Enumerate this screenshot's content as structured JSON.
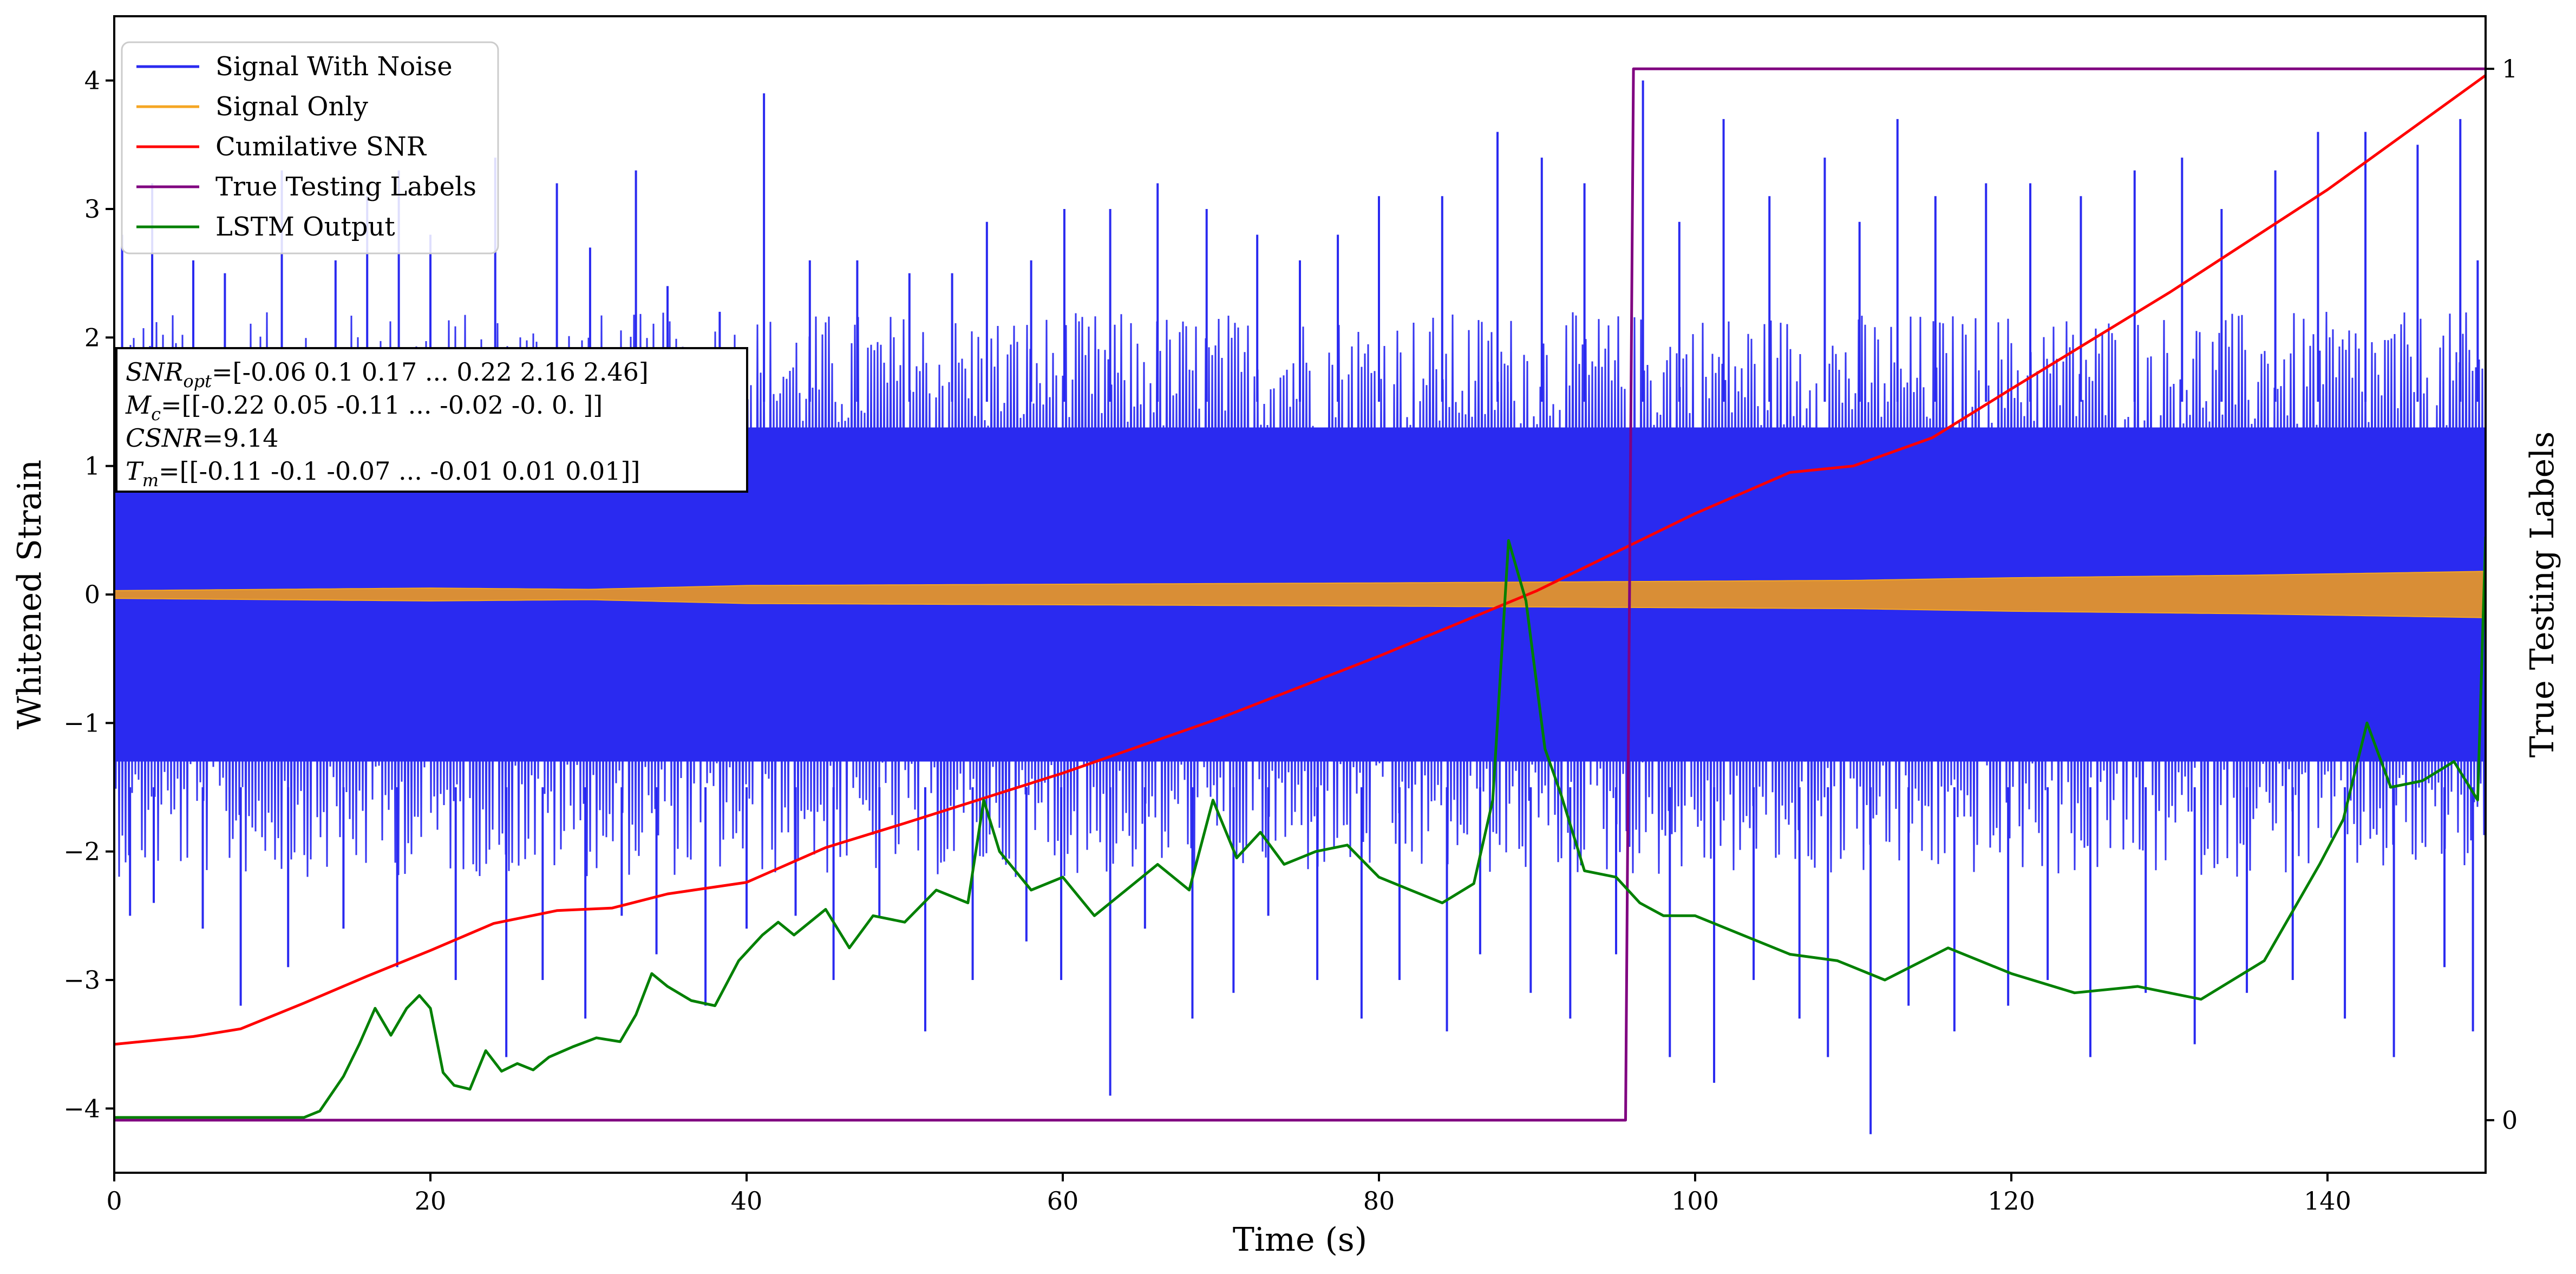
{
  "chart_data": {
    "type": "line",
    "x_axis": {
      "label": "Time (s)",
      "lim": [
        0,
        150
      ],
      "ticks": [
        0,
        20,
        40,
        60,
        80,
        100,
        120,
        140
      ],
      "tick_labels": [
        "0",
        "20",
        "40",
        "60",
        "80",
        "100",
        "120",
        "140"
      ]
    },
    "y_axis_left": {
      "label": "Whitened Strain",
      "lim": [
        -4.5,
        4.5
      ],
      "ticks": [
        -4,
        -3,
        -2,
        -1,
        0,
        1,
        2,
        3,
        4
      ],
      "tick_labels": [
        "−4",
        "−3",
        "−2",
        "−1",
        "0",
        "1",
        "2",
        "3",
        "4"
      ]
    },
    "y_axis_right": {
      "label": "True Testing Labels",
      "lim": [
        -0.05,
        1.05
      ],
      "ticks": [
        0,
        1
      ],
      "tick_labels": [
        "0",
        "1"
      ]
    },
    "legend": {
      "position": "top-left",
      "entries": [
        {
          "name": "Signal With Noise",
          "color": "#2a2af0"
        },
        {
          "name": "Signal Only",
          "color": "#f5a623"
        },
        {
          "name": "Cumilative SNR",
          "color": "#ff0000"
        },
        {
          "name": "True Testing Labels",
          "color": "#800080"
        },
        {
          "name": "LSTM Output",
          "color": "#008000"
        }
      ]
    },
    "annotation": {
      "position": "upper-left",
      "lines": [
        {
          "sym": "SNR",
          "sub": "opt",
          "rest": "=[-0.06  0.1   0.17 ...  0.22  2.16  2.46]"
        },
        {
          "sym": "M",
          "sub": "c",
          "rest": "=[[-0.22  0.05 -0.11 ... -0.02 -0.    0.  ]]"
        },
        {
          "sym": "CSNR",
          "sub": "",
          "rest": "=9.14"
        },
        {
          "sym": "T",
          "sub": "m",
          "rest": "=[[-0.11 -0.1  -0.07 ... -0.01  0.01  0.01]]"
        }
      ]
    },
    "series": [
      {
        "name": "Signal With Noise",
        "color": "#2a2af0",
        "axis": "left",
        "note": "dense noisy band approximately between -2.5 and 2.5 with spikes",
        "band_low": -2.2,
        "band_high": 2.2,
        "positive_spikes": [
          [
            0.5,
            2.8
          ],
          [
            2.4,
            3.2
          ],
          [
            5,
            2.6
          ],
          [
            7,
            2.5
          ],
          [
            10.6,
            3.3
          ],
          [
            14,
            2.6
          ],
          [
            16,
            3.1
          ],
          [
            18,
            3.3
          ],
          [
            20,
            2.8
          ],
          [
            24.1,
            3.4
          ],
          [
            28,
            3.2
          ],
          [
            30.1,
            2.7
          ],
          [
            33,
            3.3
          ],
          [
            35,
            2.4
          ],
          [
            38.3,
            2.2
          ],
          [
            41.1,
            3.9
          ],
          [
            44,
            2.6
          ],
          [
            47,
            2.6
          ],
          [
            50.3,
            2.5
          ],
          [
            53,
            2.5
          ],
          [
            55.2,
            2.9
          ],
          [
            58,
            2.6
          ],
          [
            60.1,
            3.0
          ],
          [
            63,
            3.0
          ],
          [
            66,
            3.2
          ],
          [
            69.1,
            3.0
          ],
          [
            72.3,
            2.8
          ],
          [
            75,
            2.6
          ],
          [
            77.4,
            2.8
          ],
          [
            80,
            3.1
          ],
          [
            84,
            3.1
          ],
          [
            87.5,
            3.6
          ],
          [
            90.3,
            3.4
          ],
          [
            93,
            3.2
          ],
          [
            96.7,
            4.0
          ],
          [
            99,
            2.9
          ],
          [
            101.8,
            3.7
          ],
          [
            104.7,
            3.1
          ],
          [
            108.2,
            3.4
          ],
          [
            110.4,
            2.9
          ],
          [
            112.8,
            3.7
          ],
          [
            115.2,
            3.1
          ],
          [
            118.4,
            3.2
          ],
          [
            121.2,
            3.2
          ],
          [
            124.4,
            3.1
          ],
          [
            127.8,
            3.3
          ],
          [
            130.8,
            3.4
          ],
          [
            133.3,
            3.0
          ],
          [
            136.7,
            3.3
          ],
          [
            139.4,
            3.6
          ],
          [
            142.4,
            3.6
          ],
          [
            145.7,
            3.5
          ],
          [
            148.4,
            3.7
          ],
          [
            149.5,
            2.6
          ]
        ],
        "negative_spikes": [
          [
            1,
            -2.5
          ],
          [
            2.5,
            -2.4
          ],
          [
            5.6,
            -2.6
          ],
          [
            8,
            -3.2
          ],
          [
            11,
            -2.9
          ],
          [
            14.5,
            -2.6
          ],
          [
            17.9,
            -2.9
          ],
          [
            21.6,
            -3.0
          ],
          [
            24.8,
            -3.6
          ],
          [
            27.1,
            -3.0
          ],
          [
            29.8,
            -3.3
          ],
          [
            32.1,
            -2.5
          ],
          [
            34.3,
            -2.8
          ],
          [
            37.4,
            -3.2
          ],
          [
            40,
            -2.6
          ],
          [
            43.1,
            -2.5
          ],
          [
            45.5,
            -3.0
          ],
          [
            48.4,
            -2.5
          ],
          [
            51.3,
            -3.4
          ],
          [
            54.3,
            -3.0
          ],
          [
            57.7,
            -2.7
          ],
          [
            59.9,
            -3.0
          ],
          [
            63,
            -3.9
          ],
          [
            65.2,
            -2.6
          ],
          [
            68.2,
            -3.3
          ],
          [
            70.8,
            -3.1
          ],
          [
            73,
            -2.5
          ],
          [
            76.1,
            -3.0
          ],
          [
            78.9,
            -3.3
          ],
          [
            81.3,
            -3.0
          ],
          [
            84.3,
            -3.4
          ],
          [
            86.4,
            -2.8
          ],
          [
            89.6,
            -3.1
          ],
          [
            92.1,
            -3.3
          ],
          [
            95,
            -2.8
          ],
          [
            98.4,
            -3.6
          ],
          [
            101.2,
            -3.8
          ],
          [
            103.7,
            -3.0
          ],
          [
            106.6,
            -3.3
          ],
          [
            108.4,
            -3.6
          ],
          [
            111.1,
            -4.2
          ],
          [
            113.5,
            -3.2
          ],
          [
            116.4,
            -3.4
          ],
          [
            119.8,
            -3.2
          ],
          [
            122.3,
            -3.0
          ],
          [
            125,
            -3.6
          ],
          [
            128.5,
            -3.1
          ],
          [
            131.6,
            -3.5
          ],
          [
            134.9,
            -3.1
          ],
          [
            137.8,
            -3.0
          ],
          [
            141.1,
            -3.3
          ],
          [
            144.2,
            -3.6
          ],
          [
            147.4,
            -2.9
          ],
          [
            149.2,
            -3.4
          ]
        ]
      },
      {
        "name": "Signal Only",
        "color": "#f5a623",
        "axis": "left",
        "envelope_x": [
          0,
          20,
          30,
          40,
          60,
          80,
          95,
          110,
          120,
          135,
          150
        ],
        "envelope_amp": [
          0.03,
          0.05,
          0.04,
          0.07,
          0.08,
          0.09,
          0.1,
          0.11,
          0.13,
          0.15,
          0.18
        ]
      },
      {
        "name": "Cumilative SNR",
        "color": "#ff0000",
        "axis": "left",
        "x": [
          0,
          5,
          8,
          12,
          16,
          20,
          24,
          28,
          31.5,
          35,
          40,
          45,
          50,
          60,
          70,
          80,
          90,
          100,
          106,
          110,
          115,
          120,
          130,
          140,
          150
        ],
        "y": [
          -3.5,
          -3.44,
          -3.38,
          -3.18,
          -2.97,
          -2.77,
          -2.56,
          -2.46,
          -2.44,
          -2.33,
          -2.24,
          -1.97,
          -1.78,
          -1.39,
          -0.96,
          -0.48,
          0.03,
          0.63,
          0.95,
          1.0,
          1.22,
          1.6,
          2.35,
          3.15,
          4.04
        ]
      },
      {
        "name": "True Testing Labels",
        "color": "#800080",
        "axis": "right",
        "x": [
          0,
          95.6,
          96.1,
          150
        ],
        "y": [
          0,
          0,
          1,
          1
        ]
      },
      {
        "name": "LSTM Output",
        "color": "#008000",
        "axis": "left",
        "x": [
          0,
          12,
          13,
          14.5,
          15.5,
          16.5,
          17.5,
          18.5,
          19.3,
          20,
          20.8,
          21.5,
          22.5,
          23.5,
          24.5,
          25.5,
          26.5,
          27.5,
          29,
          30.5,
          32,
          33,
          34,
          35,
          36.5,
          38,
          39.5,
          41,
          42,
          43,
          45,
          46.5,
          48,
          50,
          52,
          54,
          55,
          56,
          58,
          60,
          62,
          64,
          66,
          68,
          69.5,
          71,
          72.5,
          74,
          76,
          78,
          80,
          82,
          84,
          86,
          87.2,
          88.2,
          89.3,
          90.5,
          91.5,
          93,
          95,
          96.5,
          98,
          100,
          103,
          106,
          109,
          112,
          116,
          120,
          124,
          128,
          132,
          136,
          139.5,
          141,
          142.5,
          144,
          146,
          148,
          149.5,
          150
        ],
        "y": [
          -4.07,
          -4.07,
          -4.02,
          -3.75,
          -3.5,
          -3.22,
          -3.43,
          -3.22,
          -3.12,
          -3.22,
          -3.72,
          -3.82,
          -3.85,
          -3.55,
          -3.71,
          -3.65,
          -3.7,
          -3.6,
          -3.52,
          -3.45,
          -3.48,
          -3.27,
          -2.95,
          -3.05,
          -3.16,
          -3.2,
          -2.85,
          -2.65,
          -2.55,
          -2.65,
          -2.45,
          -2.75,
          -2.5,
          -2.55,
          -2.3,
          -2.4,
          -1.6,
          -2.0,
          -2.3,
          -2.2,
          -2.5,
          -2.3,
          -2.1,
          -2.3,
          -1.6,
          -2.05,
          -1.85,
          -2.1,
          -2.0,
          -1.95,
          -2.2,
          -2.3,
          -2.4,
          -2.25,
          -1.6,
          0.42,
          -0.05,
          -1.2,
          -1.55,
          -2.15,
          -2.2,
          -2.4,
          -2.5,
          -2.5,
          -2.65,
          -2.8,
          -2.85,
          -3.0,
          -2.75,
          -2.95,
          -3.1,
          -3.05,
          -3.15,
          -2.85,
          -2.1,
          -1.75,
          -1.0,
          -1.5,
          -1.45,
          -1.3,
          -1.6,
          0.45
        ]
      }
    ]
  }
}
